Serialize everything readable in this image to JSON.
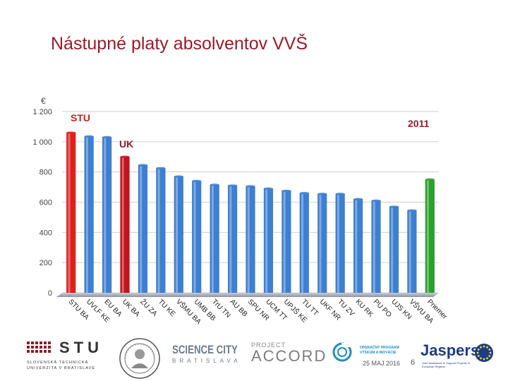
{
  "title": "Nástupné platy absolventov VVŠ",
  "chart_data": {
    "type": "bar",
    "unit_label": "€",
    "year_label": "2011",
    "annotations": [
      {
        "text": "STU",
        "target": "STU BA",
        "color": "#cc1f1f"
      },
      {
        "text": "UK",
        "target": "UK BA",
        "color": "#8e1a2b"
      }
    ],
    "categories": [
      "STU BA",
      "UVLF KE",
      "EU BA",
      "UK BA",
      "ŽU ZA",
      "TU KE",
      "VŠMU BA",
      "UMB BB",
      "TrU TN",
      "AU BB",
      "SPU NR",
      "UCM TT",
      "UPJŠ KE",
      "TU TT",
      "UKF NR",
      "TU ZV",
      "KU RK",
      "PU PO",
      "UJS KN",
      "VŠVU BA",
      "Priemer"
    ],
    "values": [
      1060,
      1035,
      1030,
      900,
      845,
      825,
      770,
      740,
      715,
      710,
      705,
      690,
      675,
      660,
      655,
      655,
      620,
      610,
      570,
      545,
      750
    ],
    "bar_colors": [
      "#e02020",
      "#3d7fd1",
      "#3d7fd1",
      "#c0141e",
      "#3d7fd1",
      "#3d7fd1",
      "#3d7fd1",
      "#3d7fd1",
      "#3d7fd1",
      "#3d7fd1",
      "#3d7fd1",
      "#3d7fd1",
      "#3d7fd1",
      "#3d7fd1",
      "#3d7fd1",
      "#3d7fd1",
      "#3d7fd1",
      "#3d7fd1",
      "#3d7fd1",
      "#3d7fd1",
      "#2ca02c"
    ],
    "ylim": [
      0,
      1200
    ],
    "yticks": [
      0,
      200,
      400,
      600,
      800,
      "1 000",
      "1 200"
    ],
    "ytick_values": [
      0,
      200,
      400,
      600,
      800,
      1000,
      1200
    ],
    "grid": true,
    "legend": "none"
  },
  "footer": {
    "stu": {
      "mark": "STU",
      "subtitle_1": "SLOVENSKÁ TECHNICKÁ",
      "subtitle_2": "UNIVERZITA V BRATISLAVE"
    },
    "science_city": {
      "title": "SCIENCE CITY",
      "subtitle": "BRATISLAVA"
    },
    "accord": {
      "small": "PROJECT",
      "big": "ACCORD"
    },
    "op": {
      "line1": "OPERAČNÝ PROGRAM",
      "line2": "VÝSKUM A INOVÁCIE"
    },
    "date": "25 MAJ 2016",
    "page": "6",
    "jaspers": {
      "name": "Jaspers",
      "subtitle": "Joint Assistance to Support Projects in European Regions"
    }
  }
}
